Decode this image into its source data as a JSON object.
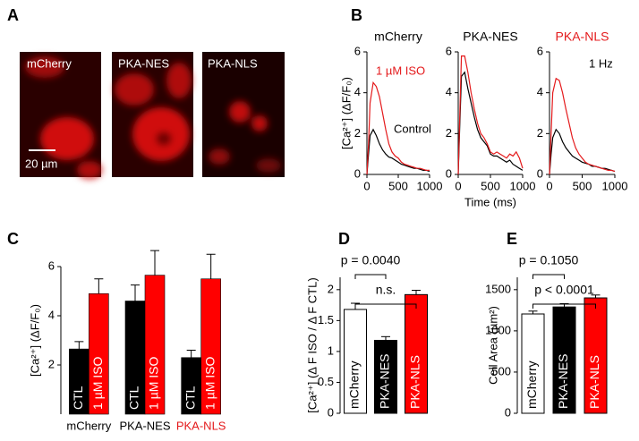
{
  "figure": {
    "panel_labels": [
      "A",
      "B",
      "C",
      "D",
      "E"
    ]
  },
  "images": {
    "labels": [
      "mCherry",
      "PKA-NES",
      "PKA-NLS"
    ],
    "scale_bar": "20 µm"
  },
  "chart_data": [
    {
      "type": "line",
      "title": "mCherry",
      "title_color": "#000000",
      "x": [
        0,
        25,
        50,
        100,
        150,
        200,
        250,
        300,
        350,
        400,
        450,
        500,
        550,
        600,
        650,
        700,
        750,
        800,
        850,
        900,
        950,
        1000
      ],
      "series": [
        {
          "name": "Control",
          "color": "#000000",
          "values": [
            0,
            1.0,
            1.9,
            2.2,
            1.9,
            1.5,
            1.2,
            1.0,
            0.85,
            0.8,
            0.7,
            0.6,
            0.5,
            0.45,
            0.4,
            0.35,
            0.3,
            0.3,
            0.25,
            0.2,
            0.2,
            0.15
          ]
        },
        {
          "name": "1 µM ISO",
          "color": "#e41a1c",
          "values": [
            0,
            1.5,
            3.5,
            4.5,
            4.3,
            3.8,
            3.0,
            2.2,
            1.5,
            1.1,
            0.9,
            0.8,
            0.6,
            0.5,
            0.45,
            0.4,
            0.35,
            0.3,
            0.3,
            0.25,
            0.2,
            0.2
          ]
        }
      ],
      "xlim": [
        0,
        1000
      ],
      "xticks": [
        0,
        500,
        1000
      ],
      "ylim": [
        0,
        6
      ],
      "yticks": [
        0,
        2,
        4,
        6
      ],
      "ylabel": "[Ca²⁺] (ΔF/F₀)"
    },
    {
      "type": "line",
      "title": "PKA-NES",
      "title_color": "#000000",
      "x": [
        0,
        25,
        50,
        100,
        150,
        200,
        250,
        300,
        350,
        400,
        450,
        500,
        550,
        600,
        650,
        700,
        750,
        800,
        850,
        900,
        950,
        1000
      ],
      "series": [
        {
          "color": "#000000",
          "values": [
            0,
            2.5,
            4.8,
            5.0,
            4.2,
            3.5,
            2.8,
            2.2,
            1.8,
            1.6,
            1.4,
            1.0,
            0.9,
            0.9,
            0.8,
            0.7,
            0.6,
            0.7,
            0.5,
            0.4,
            0.3,
            0.2
          ]
        },
        {
          "color": "#e41a1c",
          "values": [
            0,
            3.0,
            5.8,
            5.8,
            5.0,
            4.0,
            3.2,
            2.5,
            2.0,
            1.8,
            1.5,
            1.1,
            1.0,
            1.1,
            1.0,
            0.9,
            0.8,
            1.0,
            0.9,
            1.1,
            0.8,
            0.3
          ]
        }
      ],
      "xlim": [
        0,
        1000
      ],
      "xticks": [
        0,
        500,
        1000
      ],
      "ylim": [
        0,
        6
      ],
      "yticks": [
        0,
        2,
        4,
        6
      ],
      "xlabel": "Time (ms)"
    },
    {
      "type": "line",
      "title": "PKA-NLS",
      "title_color": "#e41a1c",
      "x": [
        0,
        25,
        50,
        100,
        150,
        200,
        250,
        300,
        350,
        400,
        450,
        500,
        550,
        600,
        650,
        700,
        750,
        800,
        850,
        900,
        950,
        1000
      ],
      "series": [
        {
          "color": "#000000",
          "values": [
            0,
            1.0,
            1.8,
            2.2,
            2.0,
            1.6,
            1.3,
            1.1,
            0.9,
            0.8,
            0.7,
            0.6,
            0.55,
            0.5,
            0.4,
            0.4,
            0.35,
            0.3,
            0.3,
            0.25,
            0.2,
            0.15
          ]
        },
        {
          "color": "#e41a1c",
          "values": [
            0,
            2.0,
            4.0,
            4.7,
            4.6,
            4.0,
            3.2,
            2.5,
            1.8,
            1.3,
            1.0,
            0.8,
            0.6,
            0.5,
            0.45,
            0.4,
            0.35,
            0.3,
            0.25,
            0.2,
            0.2,
            0.15
          ]
        }
      ],
      "xlim": [
        0,
        1000
      ],
      "xticks": [
        0,
        500,
        1000
      ],
      "ylim": [
        0,
        6
      ],
      "yticks": [
        0,
        2,
        4,
        6
      ],
      "annotations": [
        "1 Hz"
      ]
    },
    {
      "type": "grouped_bar",
      "categories": [
        "mCherry",
        "PKA-NES",
        "PKA-NLS"
      ],
      "category_colors": [
        "#000000",
        "#000000",
        "#e41a1c"
      ],
      "series": [
        {
          "name": "CTL",
          "color": "#000000",
          "values": [
            2.65,
            4.6,
            2.3
          ],
          "errors": [
            0.3,
            0.65,
            0.3
          ]
        },
        {
          "name": "1 µM ISO",
          "color": "#ff0000",
          "values": [
            4.9,
            5.65,
            5.5
          ],
          "errors": [
            0.6,
            1.0,
            1.0
          ]
        }
      ],
      "ylim": [
        0,
        6
      ],
      "yticks": [
        2,
        4,
        6
      ],
      "ylabel": "[Ca²⁺] (ΔF/F₀)"
    },
    {
      "type": "bar",
      "categories": [
        "mCherry",
        "PKA-NES",
        "PKA-NLS"
      ],
      "colors": [
        "#ffffff",
        "#000000",
        "#ff0000"
      ],
      "values": [
        1.68,
        1.18,
        1.92
      ],
      "errors": [
        0.1,
        0.06,
        0.07
      ],
      "ylim": [
        0,
        2.2
      ],
      "yticks": [
        0,
        0.5,
        1,
        1.5,
        2
      ],
      "ylabel": "[Ca²⁺] (Δ F ISO / Δ F CTL)",
      "comparisons": [
        {
          "label": "p = 0.0040",
          "between": [
            "mCherry",
            "PKA-NES"
          ]
        },
        {
          "label": "n.s.",
          "between": [
            "mCherry",
            "PKA-NLS"
          ]
        }
      ]
    },
    {
      "type": "bar",
      "categories": [
        "mCherry",
        "PKA-NES",
        "PKA-NLS"
      ],
      "colors": [
        "#ffffff",
        "#000000",
        "#ff0000"
      ],
      "values": [
        1205,
        1290,
        1400
      ],
      "errors": [
        35,
        40,
        35
      ],
      "ylim": [
        0,
        1650
      ],
      "yticks": [
        0,
        500,
        1000,
        1500
      ],
      "ylabel": "Cell Area (µm²)",
      "comparisons": [
        {
          "label": "p = 0.1050",
          "between": [
            "mCherry",
            "PKA-NES"
          ]
        },
        {
          "label": "p < 0.0001",
          "between": [
            "mCherry",
            "PKA-NLS"
          ]
        }
      ]
    }
  ]
}
